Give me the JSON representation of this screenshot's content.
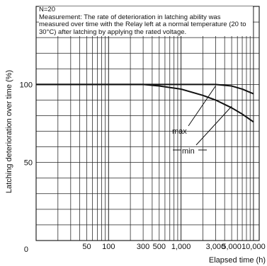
{
  "note": {
    "line1": "N=20",
    "line2": "Measurement: The rate of deterioration in latching ability was measured over time with the Relay left at a normal temperature (20 to 30°C) after latching by applying the rated voltage."
  },
  "chart_data": {
    "type": "line",
    "title": "",
    "xlabel": "Elapsed time (h)",
    "ylabel": "Latching deterioration over time (%)",
    "xscale": "log",
    "xlim": [
      10,
      12000
    ],
    "ylim": [
      0,
      150
    ],
    "grid": true,
    "x_ticks": [
      {
        "value": 50,
        "label": "50"
      },
      {
        "value": 100,
        "label": "100"
      },
      {
        "value": 300,
        "label": "300"
      },
      {
        "value": 500,
        "label": "500"
      },
      {
        "value": 1000,
        "label": "1,000"
      },
      {
        "value": 3000,
        "label": "3,000"
      },
      {
        "value": 5000,
        "label": "5,000"
      },
      {
        "value": 10000,
        "label": "10,000"
      }
    ],
    "y_ticks": [
      {
        "value": 0,
        "label": "0"
      },
      {
        "value": 50,
        "label": "50"
      },
      {
        "value": 100,
        "label": "100"
      }
    ],
    "series": [
      {
        "name": "max",
        "x": [
          10,
          100,
          1000,
          2000,
          3000,
          5000,
          7000,
          10000
        ],
        "y": [
          100,
          100,
          100,
          100,
          100,
          99,
          97,
          94
        ]
      },
      {
        "name": "min",
        "x": [
          10,
          300,
          500,
          1000,
          2000,
          3000,
          5000,
          7000,
          10000
        ],
        "y": [
          100,
          100,
          99,
          97,
          93,
          90,
          85,
          81,
          76
        ]
      }
    ],
    "colors": {
      "line": "#111111",
      "grid": "#222222",
      "background": "#ffffff"
    }
  }
}
